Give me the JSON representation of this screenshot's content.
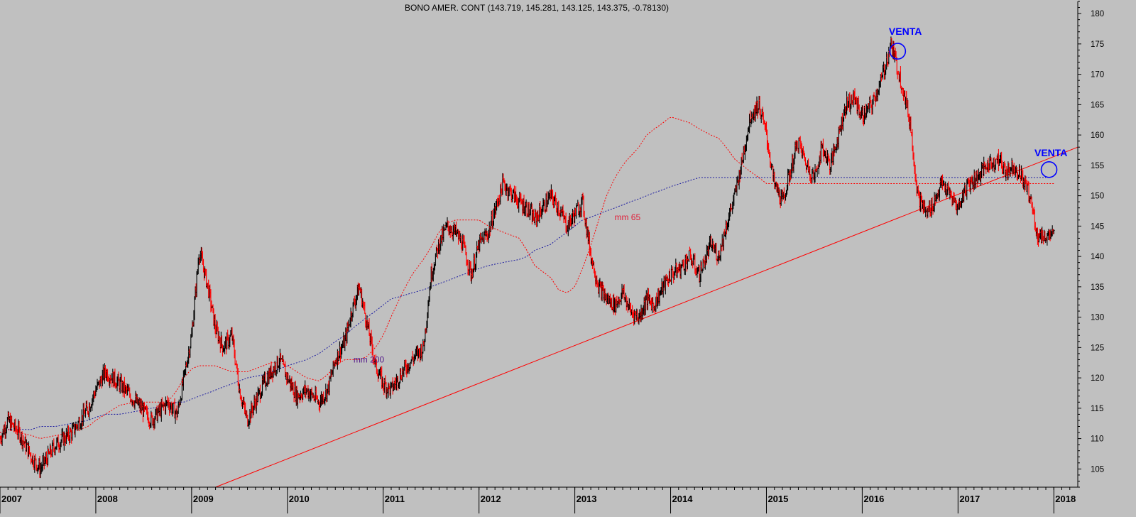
{
  "chart_data": {
    "type": "candlestick",
    "title": "BONO AMER. CONT (143.719, 145.281, 143.125, 143.375, -0.78130)",
    "xlabel": "",
    "ylabel": "",
    "ylim": [
      102,
      182
    ],
    "xlim": [
      2007.0,
      2018.25
    ],
    "grid": false,
    "legend": "none",
    "y_ticks": [
      105,
      110,
      115,
      120,
      125,
      130,
      135,
      140,
      145,
      150,
      155,
      160,
      165,
      170,
      175,
      180
    ],
    "x_ticks": [
      {
        "label": "2007",
        "value": 2007.0
      },
      {
        "label": "2008",
        "value": 2008.0
      },
      {
        "label": "2009",
        "value": 2009.0
      },
      {
        "label": "2010",
        "value": 2010.0
      },
      {
        "label": "2011",
        "value": 2011.0
      },
      {
        "label": "2012",
        "value": 2012.0
      },
      {
        "label": "2013",
        "value": 2013.0
      },
      {
        "label": "2014",
        "value": 2014.0
      },
      {
        "label": "2015",
        "value": 2015.0
      },
      {
        "label": "2016",
        "value": 2016.0
      },
      {
        "label": "2017",
        "value": 2017.0
      },
      {
        "label": "2018",
        "value": 2018.0
      }
    ],
    "price_series": {
      "name": "BONO AMER. CONT",
      "x": [
        2007.0,
        2007.08,
        2007.2,
        2007.33,
        2007.42,
        2007.58,
        2007.75,
        2007.92,
        2008.0,
        2008.1,
        2008.25,
        2008.42,
        2008.58,
        2008.75,
        2008.85,
        2008.92,
        2009.0,
        2009.08,
        2009.17,
        2009.25,
        2009.33,
        2009.42,
        2009.5,
        2009.58,
        2009.75,
        2009.83,
        2009.92,
        2010.0,
        2010.1,
        2010.2,
        2010.33,
        2010.42,
        2010.5,
        2010.6,
        2010.67,
        2010.75,
        2010.83,
        2010.92,
        2011.0,
        2011.08,
        2011.2,
        2011.3,
        2011.42,
        2011.5,
        2011.58,
        2011.67,
        2011.75,
        2011.83,
        2011.92,
        2012.0,
        2012.1,
        2012.25,
        2012.42,
        2012.5,
        2012.58,
        2012.75,
        2012.83,
        2012.92,
        2013.0,
        2013.08,
        2013.17,
        2013.25,
        2013.33,
        2013.42,
        2013.5,
        2013.58,
        2013.67,
        2013.75,
        2013.83,
        2013.92,
        2014.0,
        2014.1,
        2014.2,
        2014.3,
        2014.42,
        2014.5,
        2014.58,
        2014.67,
        2014.75,
        2014.83,
        2014.92,
        2015.0,
        2015.08,
        2015.17,
        2015.25,
        2015.33,
        2015.42,
        2015.5,
        2015.58,
        2015.67,
        2015.75,
        2015.83,
        2015.92,
        2016.0,
        2016.1,
        2016.2,
        2016.3,
        2016.42,
        2016.5,
        2016.58,
        2016.67,
        2016.75,
        2016.83,
        2016.92,
        2017.0,
        2017.1,
        2017.2,
        2017.3,
        2017.42,
        2017.5,
        2017.58,
        2017.67,
        2017.75,
        2017.83,
        2017.92,
        2018.0
      ],
      "close": [
        110,
        113,
        111,
        107,
        105,
        109,
        111,
        115,
        118,
        121,
        119,
        116,
        113,
        116,
        114,
        120,
        127,
        141,
        135,
        128,
        125,
        127,
        118,
        113,
        119,
        121,
        123,
        120,
        117,
        118,
        116,
        118,
        123,
        126,
        131,
        135,
        129,
        122,
        119,
        118,
        121,
        123,
        125,
        137,
        142,
        145,
        144,
        142,
        137,
        142,
        144,
        152,
        149,
        148,
        146,
        150,
        148,
        145,
        147,
        149,
        140,
        135,
        133,
        132,
        134,
        131,
        130,
        133,
        132,
        135,
        137,
        138,
        140,
        137,
        142,
        140,
        145,
        150,
        156,
        163,
        165,
        160,
        152,
        149,
        154,
        159,
        155,
        153,
        158,
        155,
        160,
        165,
        166,
        163,
        165,
        169,
        175,
        168,
        162,
        150,
        147,
        149,
        152,
        150,
        148,
        152,
        153,
        155,
        156,
        154,
        155,
        153,
        150,
        143.375,
        143.375,
        143.375
      ],
      "mm65": [
        111,
        111.5,
        111,
        110.5,
        110,
        110.5,
        111,
        112,
        113,
        114,
        115.5,
        116,
        116,
        116,
        118,
        120,
        121.5,
        122,
        122,
        122,
        121.5,
        121,
        121,
        121,
        122,
        122.5,
        122.5,
        122,
        121,
        120,
        119.5,
        120.5,
        122,
        123,
        123,
        123,
        123.5,
        125,
        127,
        130,
        134,
        137,
        139.5,
        141.5,
        144,
        145.5,
        146,
        146,
        146,
        146,
        145,
        144,
        143,
        141,
        138.5,
        136.5,
        134.5,
        134,
        135,
        138,
        142,
        146,
        150,
        153,
        155,
        156.5,
        158,
        160,
        161,
        162,
        163,
        162.5,
        162,
        161,
        160,
        159.5,
        158,
        156,
        155,
        154,
        153,
        152,
        152,
        152,
        152,
        152,
        152,
        152,
        152,
        152,
        152,
        152,
        152,
        152,
        152,
        152,
        152,
        152,
        152,
        152,
        152,
        152,
        152,
        152,
        152,
        152,
        152,
        152,
        152,
        152,
        152,
        152,
        152,
        152,
        152,
        152
      ],
      "mm200": [
        111,
        111.5,
        111.5,
        111.5,
        112,
        112,
        112.5,
        113,
        113.5,
        114,
        114,
        114.5,
        115,
        115.5,
        116,
        116,
        116.5,
        117,
        117.5,
        118,
        118.5,
        119,
        119.5,
        120,
        120.5,
        121,
        121.5,
        122,
        122.5,
        123,
        124,
        125,
        126,
        127,
        128,
        129,
        130,
        131,
        132,
        133,
        133.5,
        134,
        134.5,
        135,
        135.5,
        136,
        136.5,
        137,
        137.5,
        138,
        138.5,
        139,
        139.5,
        140,
        141,
        142,
        143,
        144,
        145,
        146,
        146.5,
        147,
        147.5,
        148,
        148.5,
        149,
        149.5,
        150,
        150.5,
        151,
        151.5,
        152,
        152.5,
        153,
        153,
        153,
        153,
        153,
        153,
        153,
        153,
        153,
        153,
        153,
        153,
        153,
        153,
        153,
        153,
        153,
        153,
        153,
        153,
        153,
        153,
        153,
        153,
        153,
        153,
        153,
        153,
        153,
        153,
        153,
        153,
        153,
        153,
        153,
        153,
        153,
        153,
        153,
        153,
        153,
        153
      ]
    },
    "trendline": {
      "x": [
        2009.25,
        2018.25
      ],
      "y": [
        102,
        158
      ]
    },
    "annotations": [
      {
        "text": "VENTA",
        "x": 2016.45,
        "y": 176.5
      },
      {
        "text": "VENTA",
        "x": 2017.97,
        "y": 156.5
      },
      {
        "text": "mm 65",
        "x": 2013.55,
        "y": 146
      },
      {
        "text": "mm 200",
        "x": 2010.85,
        "y": 122.5
      }
    ],
    "circles": [
      {
        "x": 2016.37,
        "y": 173.8
      },
      {
        "x": 2017.95,
        "y": 154.3
      }
    ],
    "colors": {
      "background": "#c0c0c0",
      "up_bar": "#000000",
      "down_bar": "#ff0000",
      "trendline": "#ff0000",
      "mm65": "#ff0000",
      "mm200": "#1a1aa0",
      "venta": "#0000ff",
      "mm200_label": "#551a8b"
    }
  }
}
